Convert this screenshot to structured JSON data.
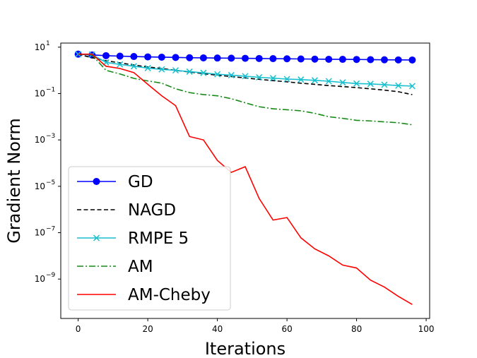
{
  "chart_data": {
    "type": "line",
    "xlabel": "Iterations",
    "ylabel": "Gradient Norm",
    "yscale": "log",
    "xlim": [
      -5,
      101
    ],
    "ylim": [
      2e-11,
      15
    ],
    "xticks": [
      0,
      20,
      40,
      60,
      80,
      100
    ],
    "yticks": [
      {
        "value": 10,
        "label": "10",
        "exp": "1"
      },
      {
        "value": 0.1,
        "label": "10",
        "exp": "−1"
      },
      {
        "value": 0.001,
        "label": "10",
        "exp": "−3"
      },
      {
        "value": 1e-05,
        "label": "10",
        "exp": "−5"
      },
      {
        "value": 1e-07,
        "label": "10",
        "exp": "−7"
      },
      {
        "value": 1e-09,
        "label": "10",
        "exp": "−9"
      }
    ],
    "grid": false,
    "legend_position": "lower-left",
    "series": [
      {
        "name": "GD",
        "color": "#0000ff",
        "style": "solid",
        "marker": "circle",
        "x": [
          0,
          4,
          8,
          12,
          16,
          20,
          24,
          28,
          32,
          36,
          40,
          44,
          48,
          52,
          56,
          60,
          64,
          68,
          72,
          76,
          80,
          84,
          88,
          92,
          96
        ],
        "y": [
          5.0,
          4.6,
          4.3,
          4.1,
          3.95,
          3.8,
          3.7,
          3.6,
          3.5,
          3.45,
          3.4,
          3.35,
          3.3,
          3.25,
          3.2,
          3.15,
          3.1,
          3.05,
          3.0,
          2.98,
          2.95,
          2.9,
          2.85,
          2.82,
          2.8
        ]
      },
      {
        "name": "NAGD",
        "color": "#000000",
        "style": "dashed",
        "marker": "none",
        "x": [
          0,
          4,
          8,
          12,
          16,
          20,
          24,
          28,
          32,
          36,
          40,
          44,
          48,
          52,
          56,
          60,
          64,
          68,
          72,
          76,
          80,
          84,
          88,
          92,
          96
        ],
        "y": [
          5.0,
          3.5,
          2.6,
          2.1,
          1.7,
          1.4,
          1.2,
          1.0,
          0.85,
          0.72,
          0.62,
          0.54,
          0.47,
          0.41,
          0.36,
          0.32,
          0.28,
          0.25,
          0.22,
          0.2,
          0.18,
          0.16,
          0.14,
          0.12,
          0.09
        ]
      },
      {
        "name": "RMPE 5",
        "color": "#17bfcf",
        "style": "solid",
        "marker": "x",
        "x": [
          0,
          4,
          8,
          12,
          16,
          20,
          24,
          28,
          32,
          36,
          40,
          44,
          48,
          52,
          56,
          60,
          64,
          68,
          72,
          76,
          80,
          84,
          88,
          92,
          96
        ],
        "y": [
          5.0,
          4.8,
          2.2,
          1.8,
          1.5,
          1.25,
          1.1,
          1.0,
          0.88,
          0.78,
          0.68,
          0.62,
          0.56,
          0.5,
          0.46,
          0.42,
          0.4,
          0.37,
          0.34,
          0.3,
          0.27,
          0.26,
          0.24,
          0.22,
          0.21
        ]
      },
      {
        "name": "AM",
        "color": "#168a16",
        "style": "dashdot",
        "marker": "none",
        "x": [
          0,
          4,
          8,
          12,
          16,
          20,
          24,
          28,
          32,
          36,
          40,
          44,
          48,
          52,
          56,
          60,
          64,
          68,
          72,
          76,
          80,
          84,
          88,
          92,
          96
        ],
        "y": [
          5.0,
          4.6,
          1.0,
          0.7,
          0.45,
          0.35,
          0.28,
          0.16,
          0.11,
          0.09,
          0.08,
          0.06,
          0.04,
          0.027,
          0.022,
          0.02,
          0.018,
          0.014,
          0.01,
          0.0085,
          0.007,
          0.0066,
          0.006,
          0.0055,
          0.0045
        ]
      },
      {
        "name": "AM-Cheby",
        "color": "#ff0000",
        "style": "solid",
        "marker": "none",
        "x": [
          0,
          4,
          8,
          12,
          16,
          20,
          24,
          28,
          32,
          36,
          40,
          44,
          48,
          52,
          56,
          60,
          64,
          68,
          72,
          76,
          80,
          84,
          88,
          92,
          96
        ],
        "y": [
          5.0,
          5.0,
          1.5,
          1.2,
          0.8,
          0.25,
          0.08,
          0.03,
          0.0014,
          0.001,
          0.00013,
          4e-05,
          7e-05,
          3e-06,
          3.5e-07,
          4.5e-07,
          6e-08,
          2e-08,
          1e-08,
          4e-09,
          3e-09,
          9e-10,
          4.5e-10,
          1.8e-10,
          8e-11
        ]
      }
    ]
  }
}
